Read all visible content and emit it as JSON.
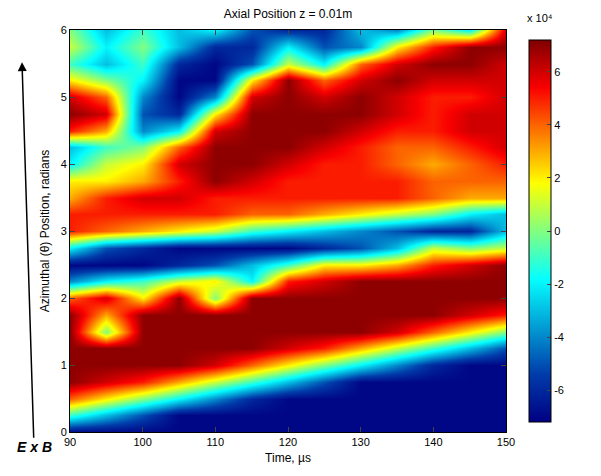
{
  "chart_data": {
    "type": "heatmap",
    "title": "Axial Position z = 0.01m",
    "x_label": "Time, µs",
    "y_label": "Azimuthal (θ) Position, radians",
    "annotation": "E x B",
    "x": [
      90,
      95,
      100,
      105,
      110,
      115,
      120,
      125,
      130,
      135,
      140,
      145,
      150
    ],
    "y": [
      0,
      0.25,
      0.5,
      0.75,
      1,
      1.25,
      1.5,
      1.75,
      2,
      2.25,
      2.5,
      2.75,
      3,
      3.25,
      3.5,
      3.75,
      4,
      4.25,
      4.5,
      4.75,
      5,
      5.25,
      5.5,
      5.75,
      6
    ],
    "z": [
      [
        -70000,
        -70000,
        -70000,
        -70000,
        -70000,
        -70000,
        -70000,
        -70000,
        -70000,
        -70000,
        -70000,
        -70000,
        -70000
      ],
      [
        -10000,
        -30000,
        -50000,
        -70000,
        -70000,
        -70000,
        -70000,
        -70000,
        -70000,
        -70000,
        -70000,
        -70000,
        -70000
      ],
      [
        40000,
        20000,
        0,
        -20000,
        -40000,
        -60000,
        -70000,
        -70000,
        -70000,
        -70000,
        -70000,
        -70000,
        -70000
      ],
      [
        70000,
        60000,
        50000,
        30000,
        10000,
        -10000,
        -30000,
        -50000,
        -70000,
        -70000,
        -70000,
        -70000,
        -70000
      ],
      [
        70000,
        70000,
        70000,
        70000,
        60000,
        40000,
        20000,
        0,
        -20000,
        -40000,
        -60000,
        -70000,
        -70000
      ],
      [
        70000,
        70000,
        70000,
        70000,
        70000,
        70000,
        60000,
        50000,
        30000,
        10000,
        -10000,
        -30000,
        -50000
      ],
      [
        70000,
        0,
        70000,
        70000,
        70000,
        70000,
        70000,
        70000,
        70000,
        60000,
        40000,
        20000,
        0
      ],
      [
        70000,
        30000,
        70000,
        70000,
        70000,
        70000,
        70000,
        70000,
        70000,
        70000,
        70000,
        60000,
        50000
      ],
      [
        40000,
        60000,
        20000,
        70000,
        0,
        70000,
        70000,
        70000,
        70000,
        70000,
        70000,
        70000,
        70000
      ],
      [
        -40000,
        -20000,
        -10000,
        10000,
        20000,
        -20000,
        50000,
        60000,
        70000,
        70000,
        70000,
        70000,
        70000
      ],
      [
        -70000,
        -70000,
        -70000,
        -60000,
        -50000,
        -30000,
        -10000,
        20000,
        20000,
        30000,
        50000,
        60000,
        70000
      ],
      [
        -20000,
        -50000,
        -60000,
        -70000,
        -70000,
        -70000,
        -70000,
        -60000,
        -50000,
        -30000,
        10000,
        0,
        10000
      ],
      [
        50000,
        40000,
        30000,
        20000,
        10000,
        -10000,
        -20000,
        -30000,
        -40000,
        -50000,
        -60000,
        -60000,
        -30000
      ],
      [
        50000,
        50000,
        50000,
        50000,
        50000,
        40000,
        40000,
        30000,
        20000,
        10000,
        0,
        -20000,
        -30000
      ],
      [
        30000,
        50000,
        60000,
        60000,
        50000,
        50000,
        50000,
        50000,
        50000,
        50000,
        40000,
        30000,
        30000
      ],
      [
        20000,
        20000,
        30000,
        50000,
        70000,
        60000,
        50000,
        50000,
        50000,
        50000,
        40000,
        40000,
        40000
      ],
      [
        -20000,
        10000,
        20000,
        60000,
        70000,
        70000,
        60000,
        50000,
        50000,
        40000,
        30000,
        40000,
        50000
      ],
      [
        -30000,
        -10000,
        0,
        40000,
        70000,
        70000,
        70000,
        60000,
        50000,
        40000,
        40000,
        50000,
        60000
      ],
      [
        50000,
        30000,
        -40000,
        -20000,
        60000,
        70000,
        70000,
        70000,
        60000,
        50000,
        50000,
        60000,
        60000
      ],
      [
        70000,
        60000,
        -50000,
        -60000,
        20000,
        70000,
        70000,
        70000,
        70000,
        60000,
        50000,
        60000,
        60000
      ],
      [
        60000,
        40000,
        -40000,
        -70000,
        -40000,
        60000,
        70000,
        60000,
        70000,
        60000,
        50000,
        50000,
        60000
      ],
      [
        20000,
        0,
        -20000,
        -70000,
        -70000,
        20000,
        70000,
        40000,
        60000,
        70000,
        60000,
        60000,
        60000
      ],
      [
        -10000,
        -30000,
        -10000,
        -60000,
        -70000,
        -50000,
        10000,
        -20000,
        40000,
        60000,
        70000,
        70000,
        60000
      ],
      [
        10000,
        -20000,
        0,
        -30000,
        -60000,
        -60000,
        -20000,
        -50000,
        -40000,
        20000,
        50000,
        70000,
        70000
      ],
      [
        0,
        -30000,
        -10000,
        -30000,
        -20000,
        -50000,
        -60000,
        -60000,
        -30000,
        -40000,
        0,
        -20000,
        60000
      ]
    ],
    "xlim": [
      90,
      150
    ],
    "ylim": [
      0,
      6
    ],
    "xticks": [
      90,
      100,
      110,
      120,
      130,
      140,
      150
    ],
    "yticks": [
      0,
      1,
      2,
      3,
      4,
      5,
      6
    ],
    "colorbar_range": [
      -72000,
      72000
    ],
    "colorbar_ticks": [
      {
        "value": -60000,
        "label": "-6"
      },
      {
        "value": -40000,
        "label": "-4"
      },
      {
        "value": -20000,
        "label": "-2"
      },
      {
        "value": 0,
        "label": "0"
      },
      {
        "value": 20000,
        "label": "2"
      },
      {
        "value": 40000,
        "label": "4"
      },
      {
        "value": 60000,
        "label": "6"
      }
    ],
    "colorbar_multiplier": "x 10⁴"
  }
}
